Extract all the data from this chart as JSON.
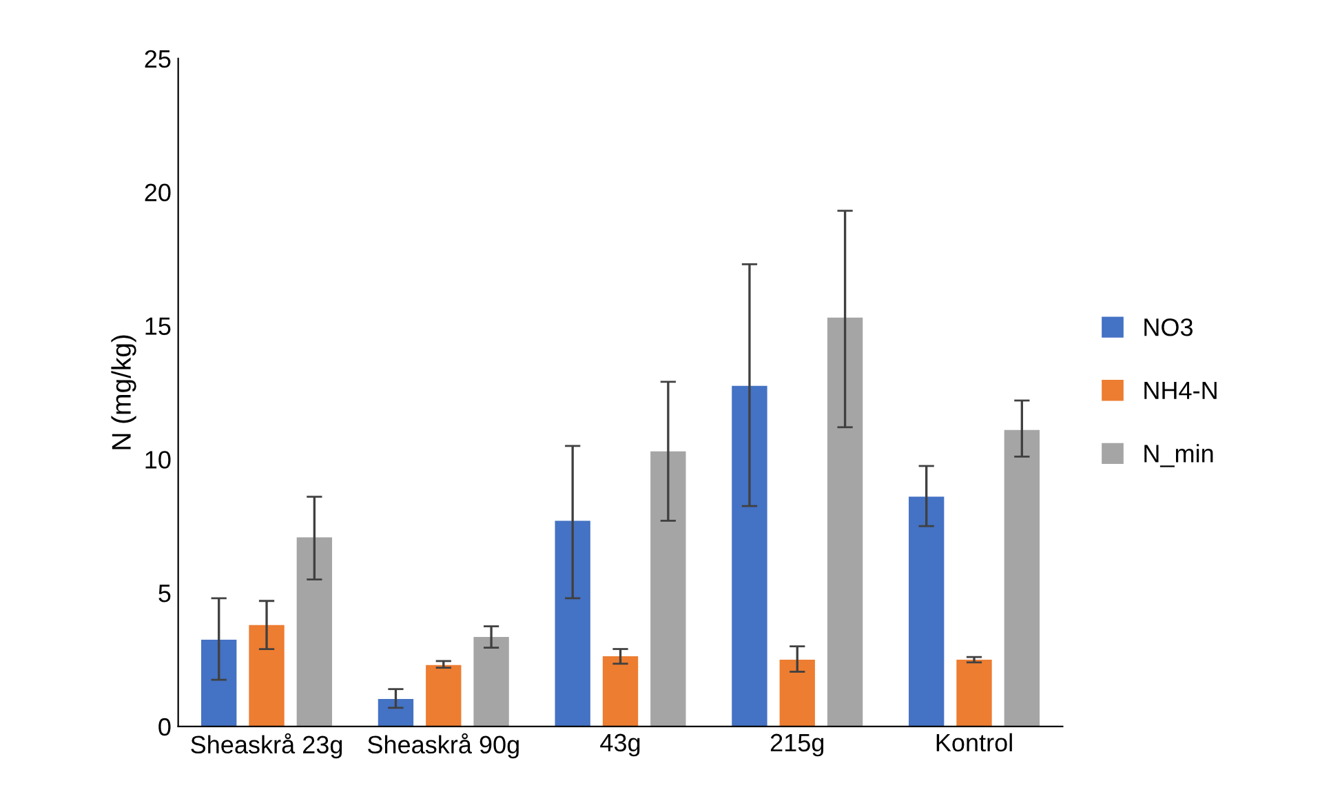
{
  "chart_data": {
    "type": "bar",
    "ylabel": "N (mg/kg)",
    "categories": [
      "Sheaskrå 23g",
      "Sheaskrå 90g",
      "43g",
      "215g",
      "Kontrol"
    ],
    "series": [
      {
        "name": "NO3",
        "color": "#4472c4",
        "values": [
          3.25,
          1.03,
          7.7,
          12.75,
          8.6
        ],
        "errors": [
          [
            1.75,
            4.8
          ],
          [
            0.7,
            1.4
          ],
          [
            4.8,
            10.5
          ],
          [
            8.25,
            17.3
          ],
          [
            7.5,
            9.75
          ]
        ]
      },
      {
        "name": "NH4-N",
        "color": "#ed7d31",
        "values": [
          3.8,
          2.3,
          2.63,
          2.5,
          2.5
        ],
        "errors": [
          [
            2.9,
            4.7
          ],
          [
            2.2,
            2.45
          ],
          [
            2.35,
            2.9
          ],
          [
            2.05,
            3.0
          ],
          [
            2.4,
            2.6
          ]
        ]
      },
      {
        "name": "N_min",
        "color": "#a5a5a5",
        "values": [
          7.08,
          3.35,
          10.3,
          15.3,
          11.1
        ],
        "errors": [
          [
            5.5,
            8.6
          ],
          [
            2.95,
            3.75
          ],
          [
            7.7,
            12.9
          ],
          [
            11.2,
            19.3
          ],
          [
            10.1,
            12.2
          ]
        ]
      }
    ],
    "ylim": [
      0,
      25
    ],
    "yticks": [
      0,
      5,
      10,
      15,
      20,
      25
    ],
    "grid": false,
    "legend": "right"
  }
}
